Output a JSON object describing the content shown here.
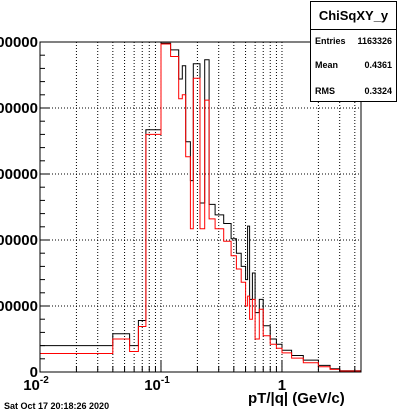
{
  "chart_data": {
    "type": "line",
    "title": "",
    "xlabel": "pT/|q| (GeV/c)",
    "ylabel": "",
    "x_scale": "log",
    "xlim": [
      0.01,
      4.5
    ],
    "ylim": [
      0,
      50000
    ],
    "x_ticks": [
      {
        "base": "10",
        "exp": "-2"
      },
      {
        "base": "10",
        "exp": "-1"
      },
      {
        "base": "1",
        "exp": ""
      }
    ],
    "y_tick_labels": [
      "0",
      "00000",
      "00000",
      "00000",
      "00000",
      "00000"
    ],
    "grid": true,
    "series": [
      {
        "color": "#000000",
        "bins": [
          [
            0.01,
            0.04,
            4000
          ],
          [
            0.04,
            0.055,
            5800
          ],
          [
            0.055,
            0.065,
            4000
          ],
          [
            0.065,
            0.075,
            7800
          ],
          [
            0.075,
            0.1,
            36700
          ],
          [
            0.1,
            0.12,
            49800
          ],
          [
            0.12,
            0.14,
            48800
          ],
          [
            0.14,
            0.15,
            44400
          ],
          [
            0.15,
            0.16,
            46400
          ],
          [
            0.16,
            0.175,
            34900
          ],
          [
            0.175,
            0.185,
            29000
          ],
          [
            0.185,
            0.21,
            46700
          ],
          [
            0.21,
            0.23,
            25600
          ],
          [
            0.23,
            0.25,
            47300
          ],
          [
            0.25,
            0.28,
            25400
          ],
          [
            0.28,
            0.33,
            23800
          ],
          [
            0.33,
            0.38,
            22500
          ],
          [
            0.38,
            0.42,
            20200
          ],
          [
            0.42,
            0.46,
            18000
          ],
          [
            0.46,
            0.5,
            16000
          ],
          [
            0.5,
            0.52,
            14000
          ],
          [
            0.52,
            0.54,
            22100
          ],
          [
            0.54,
            0.57,
            11000
          ],
          [
            0.57,
            0.6,
            15000
          ],
          [
            0.6,
            0.65,
            9000
          ],
          [
            0.65,
            0.7,
            11000
          ],
          [
            0.7,
            0.8,
            7000
          ],
          [
            0.8,
            0.9,
            5000
          ],
          [
            0.9,
            1.0,
            4200
          ],
          [
            1.0,
            1.2,
            3300
          ],
          [
            1.2,
            1.5,
            2500
          ],
          [
            1.5,
            2.0,
            1800
          ],
          [
            2.0,
            2.5,
            1000
          ],
          [
            2.5,
            3.0,
            500
          ],
          [
            3.0,
            4.5,
            200
          ]
        ]
      },
      {
        "color": "#ff0000",
        "bins": [
          [
            0.01,
            0.04,
            2800
          ],
          [
            0.04,
            0.055,
            5000
          ],
          [
            0.055,
            0.065,
            3100
          ],
          [
            0.065,
            0.075,
            6900
          ],
          [
            0.075,
            0.1,
            36000
          ],
          [
            0.1,
            0.12,
            49700
          ],
          [
            0.12,
            0.14,
            47800
          ],
          [
            0.14,
            0.15,
            41400
          ],
          [
            0.15,
            0.16,
            42000
          ],
          [
            0.16,
            0.175,
            32600
          ],
          [
            0.175,
            0.185,
            21700
          ],
          [
            0.185,
            0.21,
            44500
          ],
          [
            0.21,
            0.23,
            21700
          ],
          [
            0.23,
            0.25,
            41200
          ],
          [
            0.25,
            0.28,
            23200
          ],
          [
            0.28,
            0.33,
            21700
          ],
          [
            0.33,
            0.38,
            19800
          ],
          [
            0.38,
            0.42,
            17600
          ],
          [
            0.42,
            0.46,
            15600
          ],
          [
            0.46,
            0.5,
            13600
          ],
          [
            0.5,
            0.52,
            10000
          ],
          [
            0.52,
            0.54,
            11500
          ],
          [
            0.54,
            0.57,
            8000
          ],
          [
            0.57,
            0.6,
            11000
          ],
          [
            0.6,
            0.65,
            5000
          ],
          [
            0.65,
            0.7,
            9500
          ],
          [
            0.7,
            0.8,
            5500
          ],
          [
            0.8,
            0.9,
            4200
          ],
          [
            0.9,
            1.0,
            3600
          ],
          [
            1.0,
            1.2,
            2900
          ],
          [
            1.2,
            1.5,
            2100
          ],
          [
            1.5,
            2.0,
            1400
          ],
          [
            2.0,
            2.5,
            800
          ],
          [
            2.5,
            3.0,
            400
          ],
          [
            3.0,
            4.5,
            150
          ]
        ]
      }
    ]
  },
  "stats": {
    "title": "ChiSqXY_y",
    "entries_label": "Entries",
    "entries_value": "1163326",
    "mean_label": "Mean",
    "mean_value": "0.4361",
    "rms_label": "RMS",
    "rms_value": "0.3324"
  },
  "footer": {
    "datestamp": "Sat Oct 17 20:18:26 2020"
  }
}
